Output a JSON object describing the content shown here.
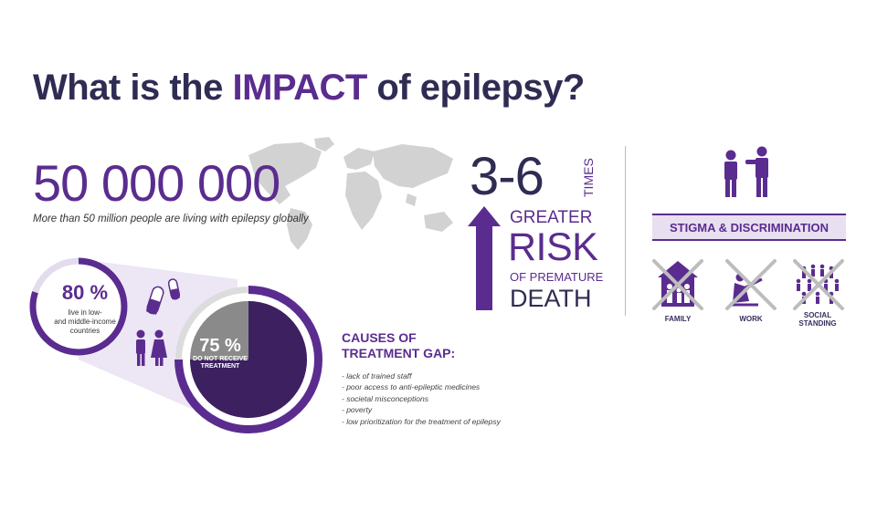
{
  "title": {
    "prefix": "What is the ",
    "highlight": "IMPACT",
    "suffix": " of epilepsy?"
  },
  "global": {
    "number": "50 000 000",
    "caption": "More than 50 million people are living with epilepsy globally"
  },
  "risk": {
    "multiplier": "3-6",
    "times": "TIMES",
    "greater": "GREATER",
    "risk": "RISK",
    "of_premature": "OF PREMATURE",
    "death": "DEATH"
  },
  "stigma": {
    "heading": "STIGMA & DISCRIMINATION",
    "categories": [
      {
        "label": "FAMILY",
        "icon": "house-family-icon"
      },
      {
        "label": "WORK",
        "icon": "worker-icon"
      },
      {
        "label": "SOCIAL\nSTANDING",
        "icon": "crowd-icon"
      }
    ]
  },
  "low_income": {
    "percent": "80 %",
    "text": "live in low-\nand middle-income\ncountries",
    "fraction": 0.8
  },
  "treatment": {
    "percent": "75 %",
    "text": "DO NOT RECEIVE\nTREATMENT",
    "fraction": 0.75
  },
  "causes": {
    "heading_line1": "CAUSES OF",
    "heading_line2": "TREATMENT GAP:",
    "items": [
      "- lack of trained staff",
      "- poor access to anti-epileptic medicines",
      "- societal misconceptions",
      "- poverty",
      "- low prioritization for the treatment of epilepsy"
    ]
  },
  "colors": {
    "purple": "#5b2c8f",
    "navy": "#2f2c53",
    "gray": "#8a8a8a",
    "lavender": "#e8e0f1"
  }
}
